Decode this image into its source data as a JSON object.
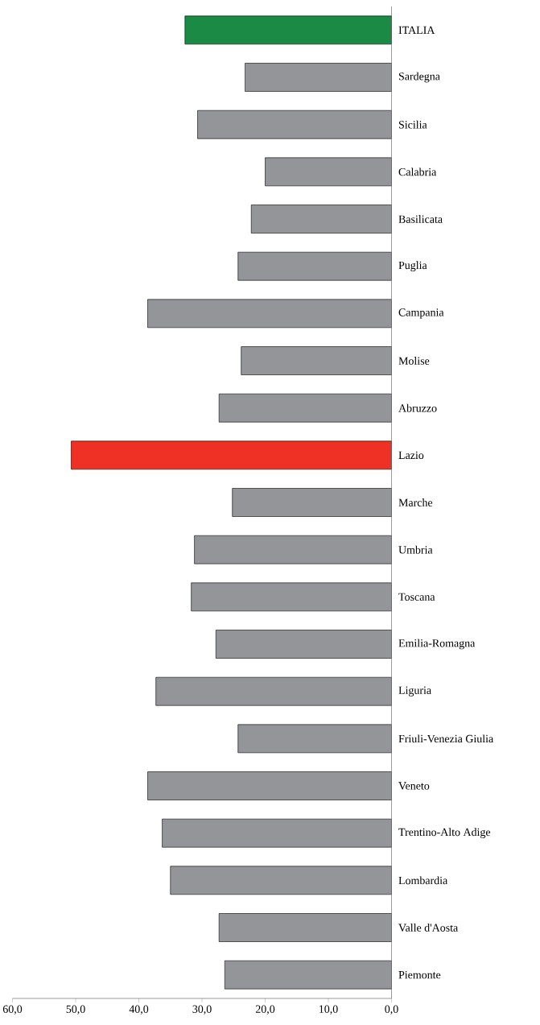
{
  "chart_data": {
    "type": "bar",
    "orientation": "horizontal",
    "categories": [
      "ITALIA",
      "Sardegna",
      "Sicilia",
      "Calabria",
      "Basilicata",
      "Puglia",
      "Campania",
      "Molise",
      "Abruzzo",
      "Lazio",
      "Marche",
      "Umbria",
      "Toscana",
      "Emilia-Romagna",
      "Liguria",
      "Friuli-Venezia Giulia",
      "Veneto",
      "Trentino-Alto Adige",
      "Lombardia",
      "Valle d'Aosta",
      "Piemonte"
    ],
    "values": [
      32.7,
      23.2,
      30.7,
      20.0,
      22.2,
      24.3,
      38.6,
      23.8,
      27.3,
      50.7,
      25.2,
      31.2,
      31.7,
      27.8,
      37.3,
      24.3,
      38.6,
      36.3,
      35.0,
      27.3,
      26.4
    ],
    "colors": [
      "#1a8a44",
      "#939598",
      "#939598",
      "#939598",
      "#939598",
      "#939598",
      "#939598",
      "#939598",
      "#939598",
      "#ee3124",
      "#939598",
      "#939598",
      "#939598",
      "#939598",
      "#939598",
      "#939598",
      "#939598",
      "#939598",
      "#939598",
      "#939598",
      "#939598"
    ],
    "xlim": [
      60,
      0
    ],
    "xticks": [
      {
        "value": 60,
        "label": "60,0"
      },
      {
        "value": 50,
        "label": "50,0"
      },
      {
        "value": 40,
        "label": "40,0"
      },
      {
        "value": 30,
        "label": "30,0"
      },
      {
        "value": 20,
        "label": "20,0"
      },
      {
        "value": 10,
        "label": "10,0"
      },
      {
        "value": 0,
        "label": "0,0"
      }
    ],
    "grid": false
  }
}
